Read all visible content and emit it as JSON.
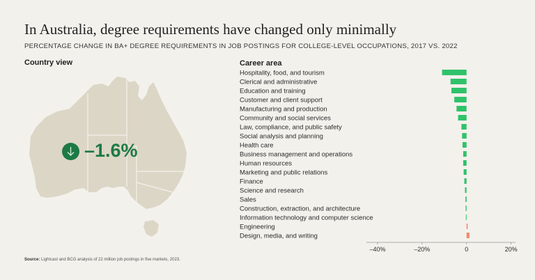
{
  "title": "In Australia, degree requirements have changed only minimally",
  "subtitle": "PERCENTAGE CHANGE IN BA+ DEGREE REQUIREMENTS IN JOB POSTINGS FOR COLLEGE-LEVEL OCCUPATIONS, 2017 VS. 2022",
  "left_heading": "Country view",
  "country_value": "–1.6%",
  "source_label": "Source:",
  "source_text": " Lightcast and BCG analysis of 22 million job postings in five markets, 2023.",
  "colors": {
    "negative": "#2fc26a",
    "positive": "#f08a6b",
    "map_fill": "#dcd6c6",
    "value_green": "#1d7a45"
  },
  "icons": {
    "badge": "arrow-down-icon"
  },
  "chart_data": {
    "type": "bar",
    "orientation": "horizontal",
    "category_heading": "Career area",
    "categories": [
      "Hospitality, food, and tourism",
      "Clerical and administrative",
      "Education and training",
      "Customer and client support",
      "Manufacturing and production",
      "Community and social services",
      "Law, compliance, and public safety",
      "Social analysis and planning",
      "Health care",
      "Business management and operations",
      "Human resources",
      "Marketing and public relations",
      "Finance",
      "Science and research",
      "Sales",
      "Construction, extraction, and architecture",
      "Information technology and computer science",
      "Engineering",
      "Design, media, and writing"
    ],
    "values": [
      -11,
      -7.2,
      -6.8,
      -5.5,
      -4.5,
      -3.8,
      -2.3,
      -2.0,
      -1.8,
      -1.5,
      -1.5,
      -1.3,
      -1.0,
      -0.7,
      -0.5,
      -0.4,
      -0.3,
      0.5,
      1.3
    ],
    "xlim": [
      -45,
      22
    ],
    "xticks": [
      -40,
      -20,
      0,
      20
    ],
    "xtick_labels": [
      "–40%",
      "–20%",
      "0",
      "20%"
    ]
  }
}
